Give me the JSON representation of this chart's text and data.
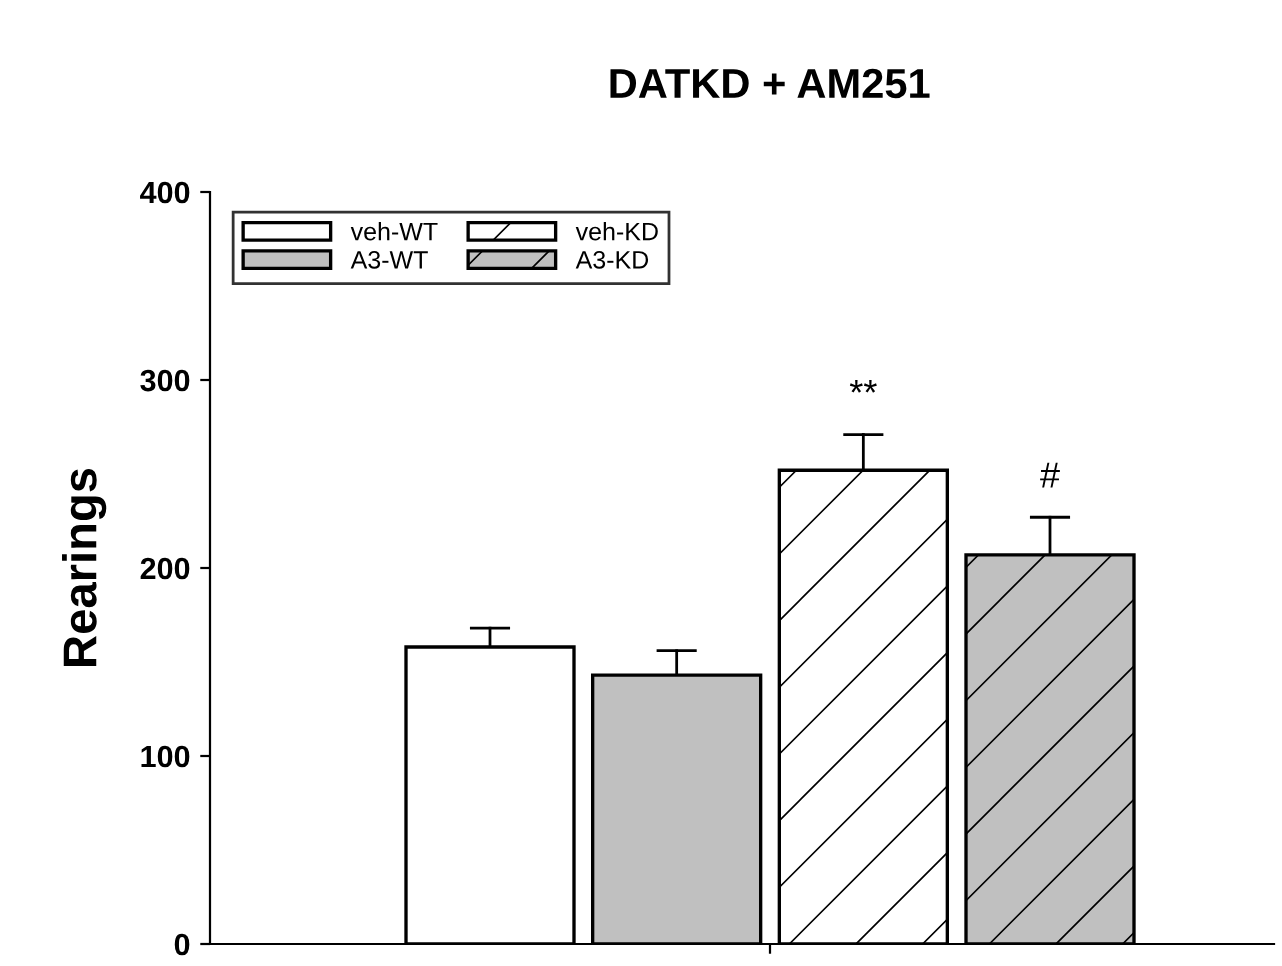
{
  "chart_data": {
    "type": "bar",
    "title": "DATKD + AM251",
    "ylabel": "Rearings",
    "categories": [
      null
    ],
    "series": [
      {
        "name": "veh-WT",
        "color": "#ffffff",
        "values": [
          158
        ],
        "errors": [
          10
        ]
      },
      {
        "name": "A3-WT",
        "color": "#c0c0c0",
        "values": [
          143
        ],
        "errors": [
          13
        ]
      },
      {
        "name": "veh-KD",
        "color": "#ffffff",
        "values": [
          252
        ],
        "errors": [
          19
        ]
      },
      {
        "name": "A3-KD",
        "color": "#c0c0c0",
        "values": [
          207
        ],
        "errors": [
          20
        ]
      }
    ],
    "annotations": [
      "**",
      "#"
    ],
    "ylim": [
      0,
      400
    ],
    "yticks": [
      0,
      100,
      200,
      300,
      400
    ],
    "grid": false,
    "legend": "top left"
  }
}
